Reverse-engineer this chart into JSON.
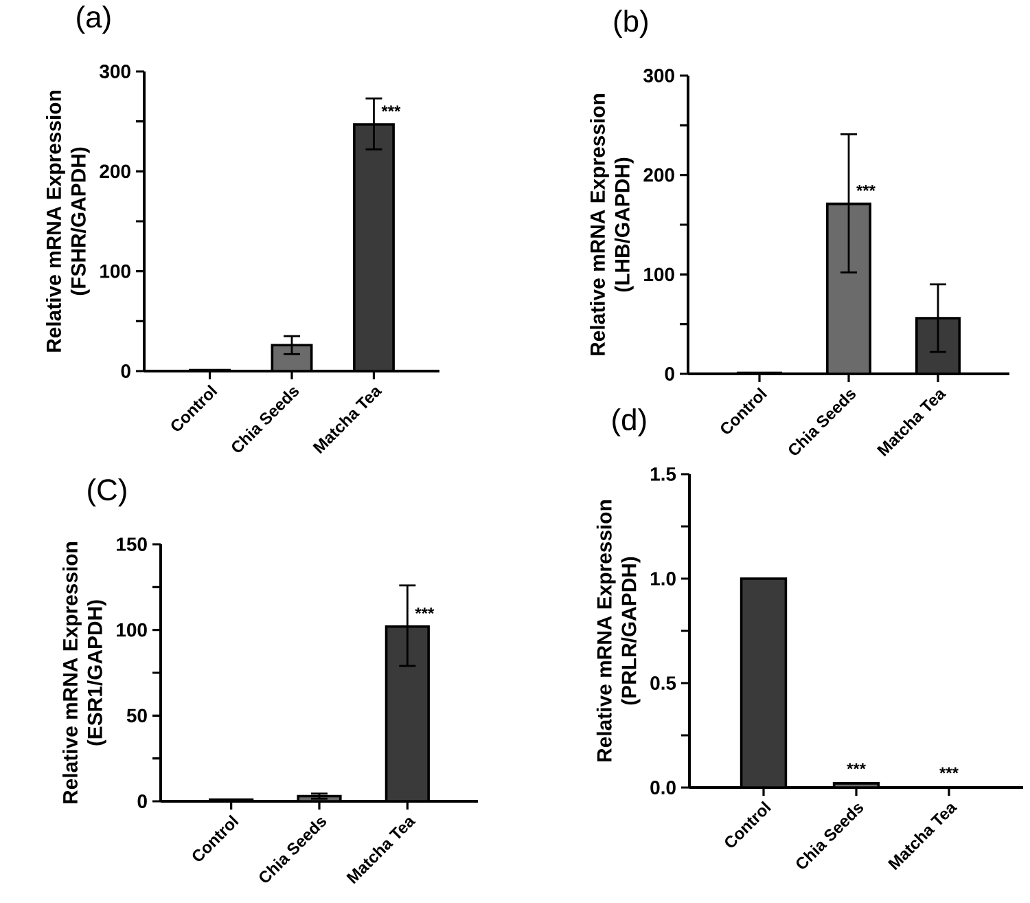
{
  "chart_data": [
    {
      "type": "bar",
      "title": "(a)",
      "ylabel": "Relative mRNA Expression (FSHR/GAPDH)",
      "categories": [
        "Control",
        "Chia Seeds",
        "Matcha Tea"
      ],
      "values": [
        1,
        26,
        247
      ],
      "colors": [
        "#3a3a3a",
        "#6b6b6b",
        "#3a3a3a"
      ],
      "errors": [
        null,
        [
          17,
          35
        ],
        [
          222,
          273
        ]
      ],
      "ylim": [
        0,
        300
      ],
      "yticks": [
        0,
        {
          "value": 50,
          "label": null
        },
        100,
        {
          "value": 150,
          "label": null
        },
        200,
        {
          "value": 250,
          "label": null
        },
        300
      ],
      "value_labels": [
        null,
        null,
        "***"
      ]
    },
    {
      "type": "bar",
      "title": "(b)",
      "ylabel": "Relative mRNA Expression (LHB/GAPDH)",
      "categories": [
        "Control",
        "Chia Seeds",
        "Matcha Tea"
      ],
      "values": [
        1,
        171,
        56
      ],
      "colors": [
        "#3a3a3a",
        "#6b6b6b",
        "#3a3a3a"
      ],
      "errors": [
        null,
        [
          102,
          241
        ],
        [
          22,
          90
        ]
      ],
      "ylim": [
        0,
        300
      ],
      "yticks": [
        0,
        {
          "value": 50,
          "label": null
        },
        100,
        {
          "value": 150,
          "label": null
        },
        200,
        {
          "value": 250,
          "label": null
        },
        300
      ],
      "value_labels": [
        null,
        "***",
        null
      ]
    },
    {
      "type": "bar",
      "title": "(C)",
      "ylabel": "Relative mRNA Expression (ESR1/GAPDH)",
      "categories": [
        "Control",
        "Chia Seeds",
        "Matcha Tea"
      ],
      "values": [
        1,
        3,
        102
      ],
      "colors": [
        "#3a3a3a",
        "#6b6b6b",
        "#3a3a3a"
      ],
      "errors": [
        null,
        1.5,
        [
          79,
          126
        ]
      ],
      "ylim": [
        0,
        150
      ],
      "yticks": [
        0,
        {
          "value": 25,
          "label": null
        },
        50,
        {
          "value": 75,
          "label": null
        },
        100,
        {
          "value": 125,
          "label": null
        },
        150
      ],
      "value_labels": [
        null,
        null,
        "***"
      ]
    },
    {
      "type": "bar",
      "title": "(d)",
      "ylabel": "Relative mRNA Expression (PRLR/GAPDH)",
      "categories": [
        "Control",
        "Chia Seeds",
        "Matcha Tea"
      ],
      "values": [
        1.0,
        0.02,
        0
      ],
      "colors": [
        "#3a3a3a",
        "#6b6b6b",
        "#3a3a3a"
      ],
      "ylim": [
        0,
        1.5
      ],
      "yticks": [
        {
          "value": 0,
          "label": "0.0"
        },
        {
          "value": 0.25,
          "label": null
        },
        0.5,
        {
          "value": 0.75,
          "label": null
        },
        {
          "value": 1.0,
          "label": "1.0"
        },
        {
          "value": 1.25,
          "label": null
        },
        1.5
      ],
      "value_labels": [
        null,
        "***",
        "***"
      ]
    }
  ]
}
